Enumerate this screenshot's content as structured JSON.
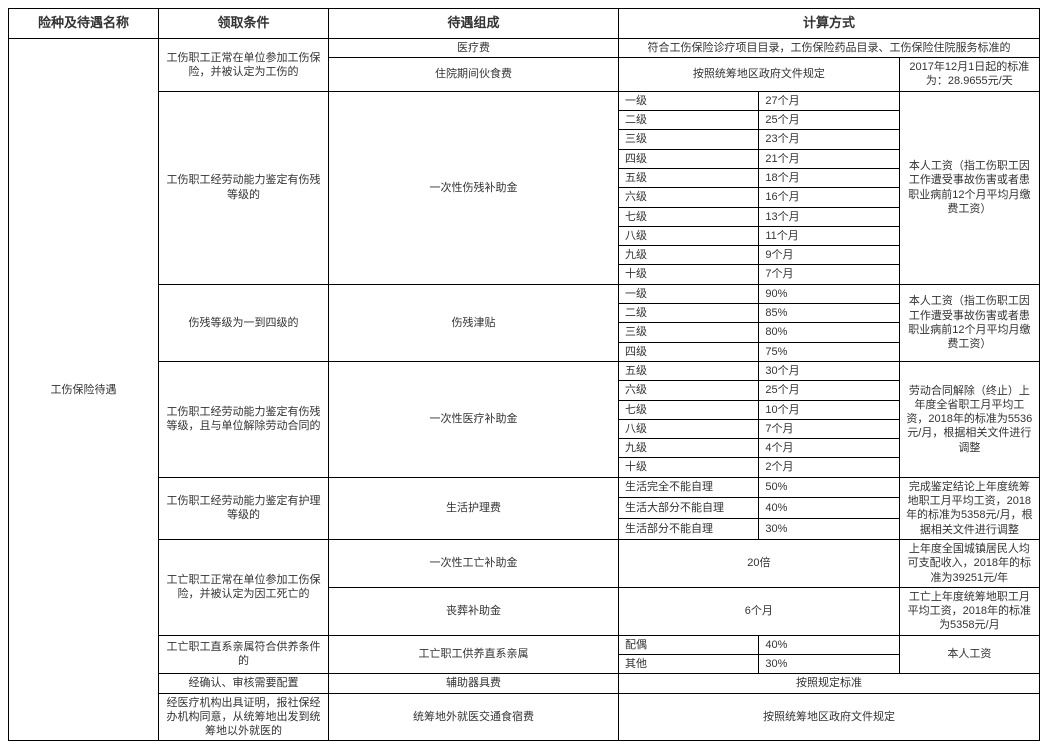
{
  "headers": {
    "h1": "险种及待遇名称",
    "h2": "领取条件",
    "h3": "待遇组成",
    "h4": "计算方式"
  },
  "category": "工伤保险待遇",
  "rows": {
    "cond1": "工伤职工正常在单位参加工伤保险，并被认定为工伤的",
    "comp1a": "医疗费",
    "calc1a": "符合工伤保险诊疗项目目录，工伤保险药品目录、工伤保险住院服务标准的",
    "comp1b": "住院期间伙食费",
    "calc1b_l": "按照统筹地区政府文件规定",
    "calc1b_r": "2017年12月1日起的标准为：28.9655元/天",
    "cond2": "工伤职工经劳动能力鉴定有伤残等级的",
    "comp2": "一次性伤残补助金",
    "g1l": "一级",
    "g1v": "27个月",
    "g2l": "二级",
    "g2v": "25个月",
    "g3l": "三级",
    "g3v": "23个月",
    "g4l": "四级",
    "g4v": "21个月",
    "g5l": "五级",
    "g5v": "18个月",
    "g6l": "六级",
    "g6v": "16个月",
    "g7l": "七级",
    "g7v": "13个月",
    "g8l": "八级",
    "g8v": "11个月",
    "g9l": "九级",
    "g9v": "9个月",
    "g10l": "十级",
    "g10v": "7个月",
    "calc2r": "本人工资（指工伤职工因工作遭受事故伤害或者患职业病前12个月平均月缴费工资）",
    "cond3": "伤残等级为一到四级的",
    "comp3": "伤残津贴",
    "d1l": "一级",
    "d1v": "90%",
    "d2l": "二级",
    "d2v": "85%",
    "d3l": "三级",
    "d3v": "80%",
    "d4l": "四级",
    "d4v": "75%",
    "calc3r": "本人工资（指工伤职工因工作遭受事故伤害或者患职业病前12个月平均月缴费工资）",
    "cond4": "工伤职工经劳动能力鉴定有伤残等级，且与单位解除劳动合同的",
    "comp4": "一次性医疗补助金",
    "m5l": "五级",
    "m5v": "30个月",
    "m6l": "六级",
    "m6v": "25个月",
    "m7l": "七级",
    "m7v": "10个月",
    "m8l": "八级",
    "m8v": "7个月",
    "m9l": "九级",
    "m9v": "4个月",
    "m10l": "十级",
    "m10v": "2个月",
    "calc4r": "劳动合同解除（终止）上年度全省职工月平均工资，2018年的标准为5536元/月，根据相关文件进行调整",
    "cond5": "工伤职工经劳动能力鉴定有护理等级的",
    "comp5": "生活护理费",
    "n1l": "生活完全不能自理",
    "n1v": "50%",
    "n2l": "生活大部分不能自理",
    "n2v": "40%",
    "n3l": "生活部分不能自理",
    "n3v": "30%",
    "calc5r": "完成鉴定结论上年度统筹地职工月平均工资，2018年的标准为5358元/月，根据相关文件进行调整",
    "cond6": "工亡职工正常在单位参加工伤保险，并被认定为因工死亡的",
    "comp6a": "一次性工亡补助金",
    "calc6a_l": "20倍",
    "calc6a_r": "上年度全国城镇居民人均可支配收入，2018年的标准为39251元/年",
    "comp6b": "丧葬补助金",
    "calc6b_l": "6个月",
    "calc6b_r": "工亡上年度统筹地职工月平均工资，2018年的标准为5358元/月",
    "cond7": "工亡职工直系亲属符合供养条件的",
    "comp7": "工亡职工供养直系亲属",
    "s1l": "配偶",
    "s1v": "40%",
    "s2l": "其他",
    "s2v": "30%",
    "calc7r": "本人工资",
    "cond8": "经确认、审核需要配置",
    "comp8": "辅助器具费",
    "calc8": "按照规定标准",
    "cond9": "经医疗机构出具证明，报社保经办机构同意，从统筹地出发到统筹地以外就医的",
    "comp9": "统筹地外就医交通食宿费",
    "calc9": "按照统筹地区政府文件规定"
  },
  "style": {
    "border_color": "#000000",
    "text_color": "#333333",
    "bg_color": "#ffffff",
    "header_fontsize": 13,
    "cell_fontsize": 11
  }
}
